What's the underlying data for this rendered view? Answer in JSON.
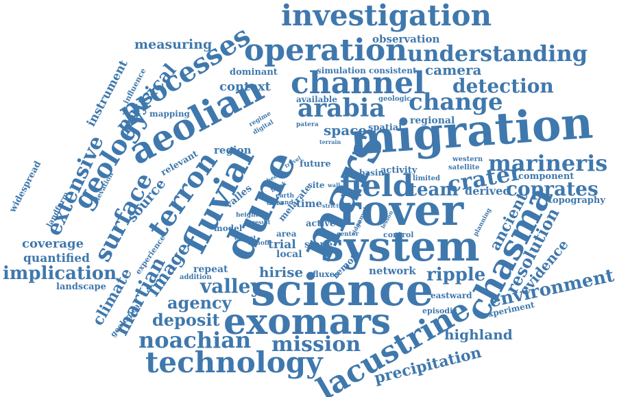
{
  "color": "#3f78ad",
  "background": "#ffffff",
  "words": [
    "investigation",
    "observation",
    "measuring",
    "operation",
    "understanding",
    "processes",
    "camera",
    "instrument",
    "influence",
    "physical",
    "simulation",
    "consistent",
    "dominant",
    "context",
    "channel",
    "detection",
    "aeolian",
    "available",
    "geologic",
    "arabia",
    "change",
    "mapping",
    "regime",
    "digital",
    "patera",
    "regional",
    "geology",
    "space",
    "spatial",
    "terrain",
    "migration",
    "extensive",
    "surface",
    "terron",
    "relevant",
    "region",
    "fluvial",
    "dune",
    "mars",
    "travel",
    "future",
    "western",
    "satellite",
    "marineris",
    "crater",
    "basin",
    "activity",
    "limited",
    "component",
    "field",
    "team",
    "sheet",
    "brink",
    "site",
    "wall",
    "derived",
    "coprates",
    "widespread",
    "elevation",
    "source",
    "valles",
    "melarate",
    "earth",
    "sand",
    "topography",
    "landform",
    "image",
    "height",
    "data",
    "strict",
    "ancient",
    "martian",
    "time",
    "rover",
    "planning",
    "area",
    "result",
    "active",
    "lesson",
    "chasma",
    "resolution",
    "coverage",
    "model",
    "extent",
    "trial",
    "runoff",
    "center",
    "ridge",
    "sample",
    "control",
    "evidence",
    "quantified",
    "experience",
    "local",
    "slope",
    "system",
    "climate",
    "implication",
    "repeat",
    "addition",
    "hirise",
    "fluxes",
    "remote",
    "network",
    "ripple",
    "landscape",
    "valley",
    "eastward",
    "environment",
    "science",
    "agency",
    "deposit",
    "geological",
    "episodic",
    "experiment",
    "exomars",
    "lacustrine",
    "highland",
    "noachian",
    "mission",
    "technology",
    "precipitation"
  ]
}
